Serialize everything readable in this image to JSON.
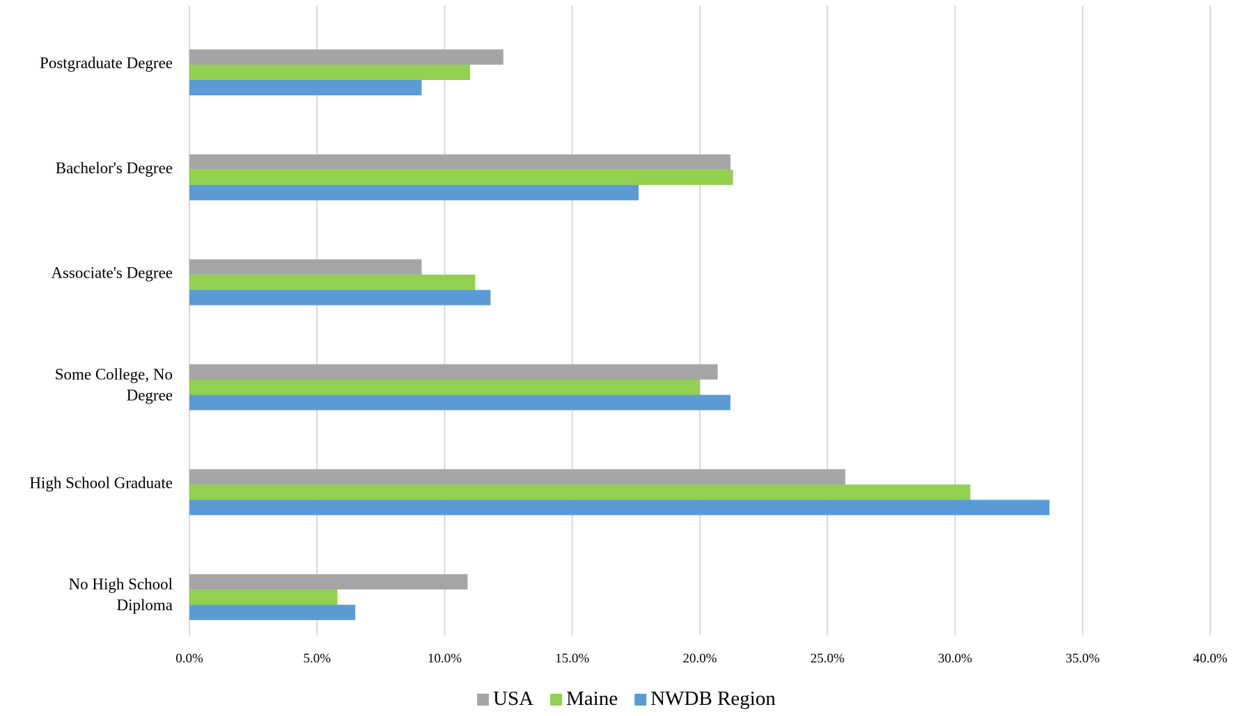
{
  "chart_data": {
    "type": "bar",
    "orientation": "horizontal",
    "categories": [
      "Postgraduate Degree",
      "Bachelor's Degree",
      "Associate's Degree",
      "Some College, No Degree",
      "High School Graduate",
      "No High School Diploma"
    ],
    "category_label_lines": [
      [
        "Postgraduate Degree"
      ],
      [
        "Bachelor's Degree"
      ],
      [
        "Associate's Degree"
      ],
      [
        "Some College, No",
        "Degree"
      ],
      [
        "High School Graduate"
      ],
      [
        "No High School",
        "Diploma"
      ]
    ],
    "series": [
      {
        "name": "USA",
        "color": "#a5a5a5",
        "values": [
          12.3,
          21.2,
          9.1,
          20.7,
          25.7,
          10.9
        ]
      },
      {
        "name": "Maine",
        "color": "#92d050",
        "values": [
          11.0,
          21.3,
          11.2,
          20.0,
          30.6,
          5.8
        ]
      },
      {
        "name": "NWDB Region",
        "color": "#5b9bd5",
        "values": [
          9.1,
          17.6,
          11.8,
          21.2,
          33.7,
          6.5
        ]
      }
    ],
    "xlim": [
      0,
      40
    ],
    "x_ticks": [
      0,
      5,
      10,
      15,
      20,
      25,
      30,
      35,
      40
    ],
    "x_tick_labels": [
      "0.0%",
      "5.0%",
      "10.0%",
      "15.0%",
      "20.0%",
      "25.0%",
      "30.0%",
      "35.0%",
      "40.0%"
    ],
    "grid": true,
    "legend_position": "bottom",
    "title": "",
    "xlabel": "",
    "ylabel": ""
  }
}
